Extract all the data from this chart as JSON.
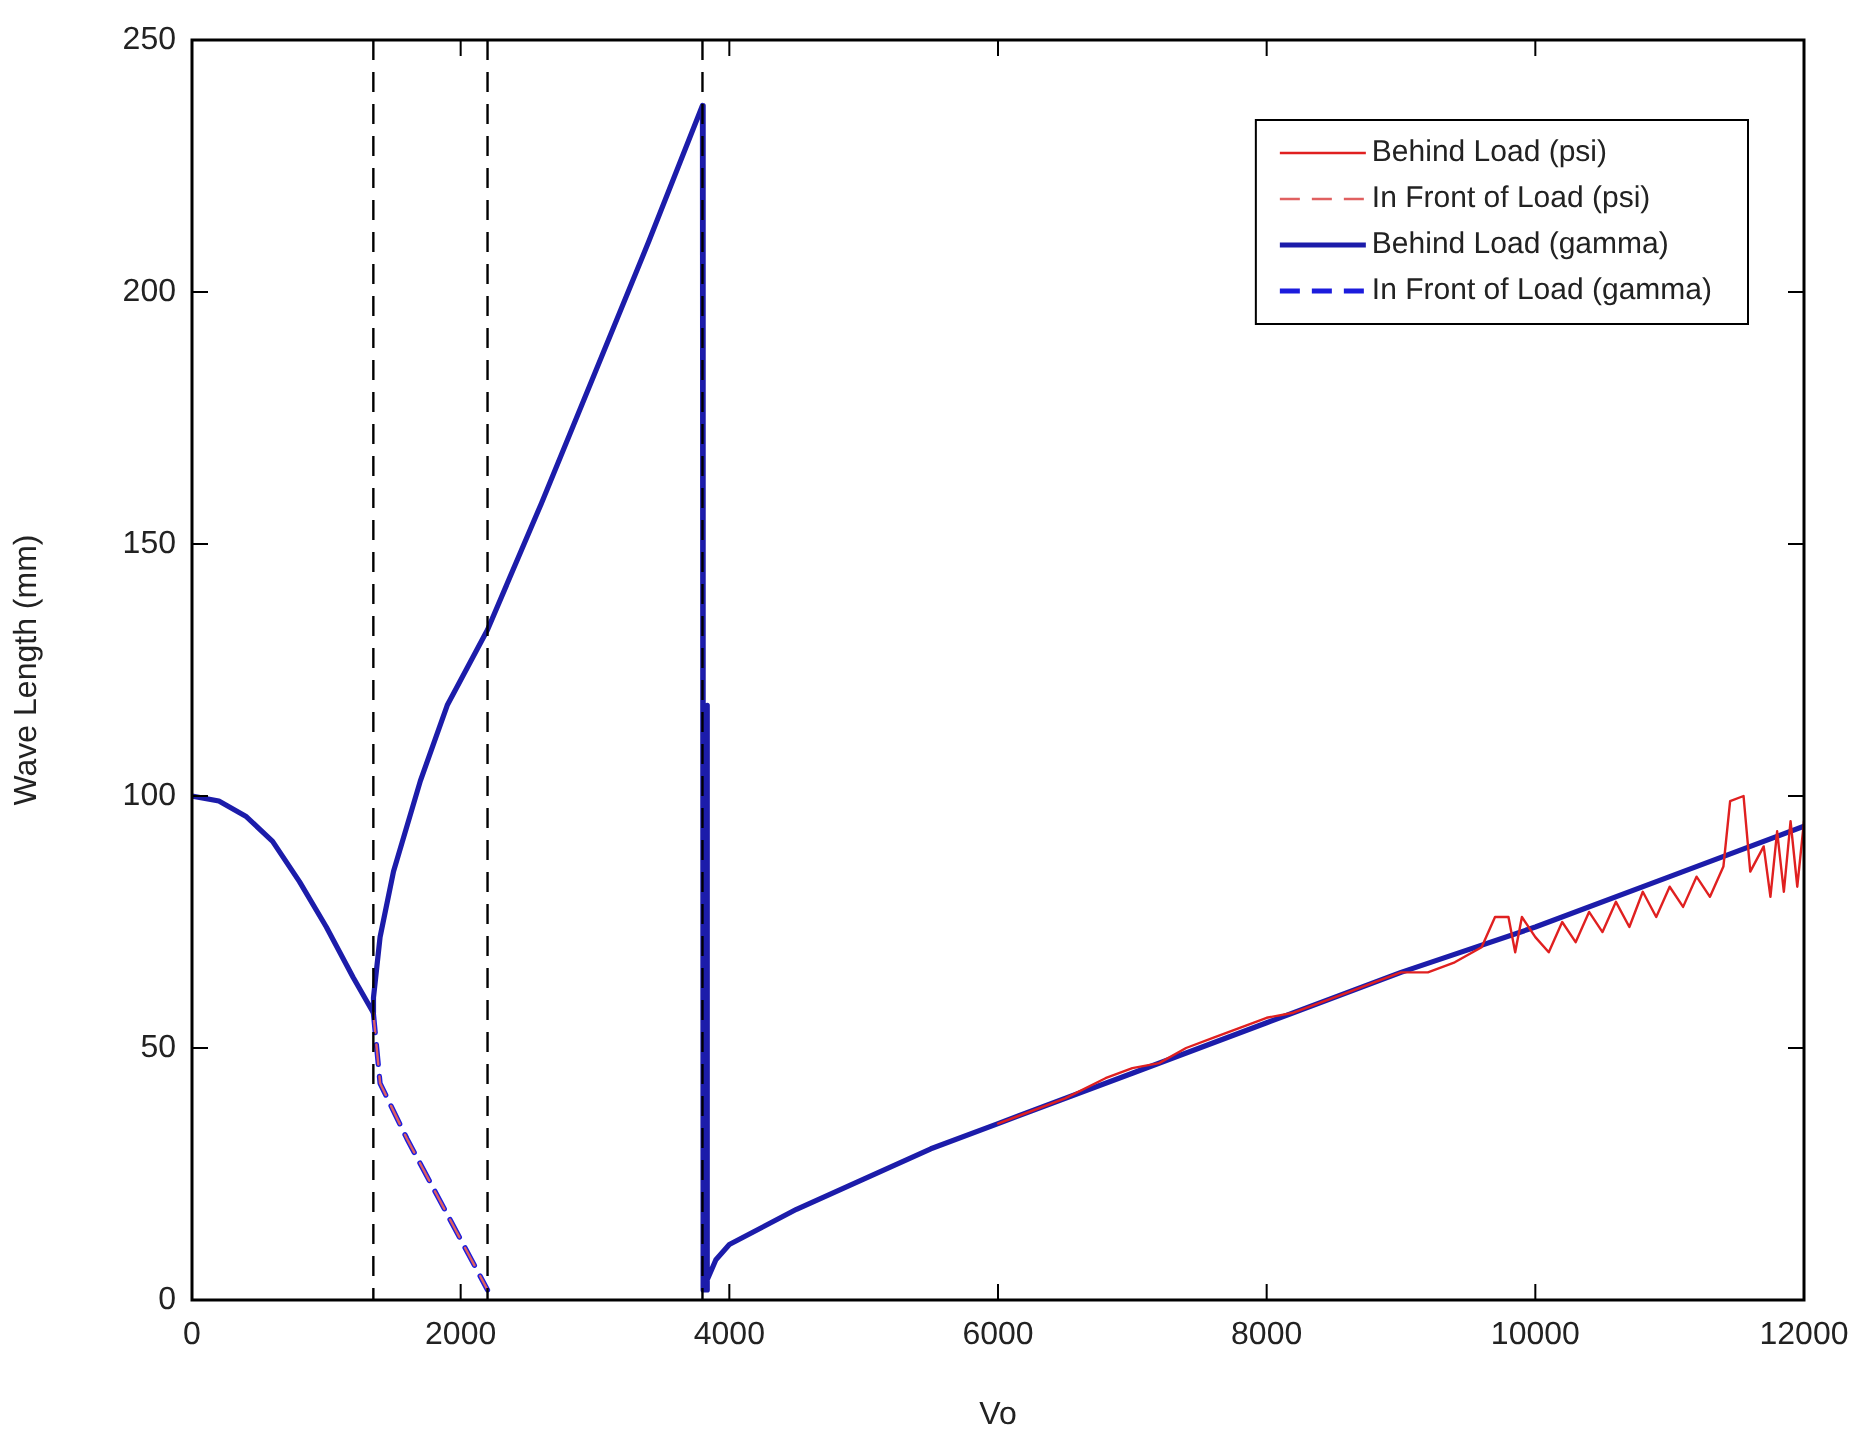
{
  "chart_data": {
    "type": "line",
    "xlabel": "Vo",
    "ylabel": "Wave Length (mm)",
    "xlim": [
      0,
      12000
    ],
    "xticks": [
      0,
      2000,
      4000,
      6000,
      8000,
      10000,
      12000
    ],
    "ylim": [
      0,
      250
    ],
    "yticks": [
      0,
      50,
      100,
      150,
      200,
      250
    ],
    "grid": false,
    "legend": "top right",
    "marker": "none",
    "ref_lines": [
      {
        "axis": "x",
        "value": 1350,
        "color": "#000000",
        "line_style": "dashed"
      },
      {
        "axis": "x",
        "value": 2200,
        "color": "#000000",
        "line_style": "dashed"
      },
      {
        "axis": "x",
        "value": 3800,
        "color": "#000000",
        "line_style": "dashed"
      }
    ],
    "series": [
      {
        "name": "Behind Load (psi)",
        "color": "#e02020",
        "line_style": "solid",
        "x": [
          6000,
          6500,
          6800,
          7000,
          7200,
          7400,
          7600,
          7800,
          8000,
          8200,
          8400,
          8600,
          8800,
          9000,
          9200,
          9400,
          9600,
          9700,
          9800,
          9850,
          9900,
          10000,
          10100,
          10200,
          10300,
          10400,
          10500,
          10600,
          10700,
          10800,
          10900,
          11000,
          11100,
          11200,
          11300,
          11400,
          11450,
          11550,
          11600,
          11700,
          11750,
          11800,
          11850,
          11900,
          11950,
          12000
        ],
        "values": [
          35,
          40,
          44,
          46,
          47,
          50,
          52,
          54,
          56,
          57,
          59,
          61,
          63,
          65,
          65,
          67,
          70,
          76,
          76,
          69,
          76,
          72,
          69,
          75,
          71,
          77,
          73,
          79,
          74,
          81,
          76,
          82,
          78,
          84,
          80,
          86,
          99,
          100,
          85,
          90,
          80,
          93,
          81,
          95,
          82,
          95
        ]
      },
      {
        "name": "In Front of Load (psi)",
        "color": "#e06060",
        "line_style": "dashed",
        "x": [
          1350,
          1400,
          1600,
          1800,
          2000,
          2200
        ],
        "values": [
          57,
          43,
          32,
          22,
          12,
          2
        ]
      },
      {
        "name": "Behind Load (gamma)",
        "color": "#1c1caa",
        "line_style": "solid",
        "x": [
          0,
          200,
          400,
          600,
          800,
          1000,
          1200,
          1350,
          1351,
          1400,
          1500,
          1700,
          1900,
          2200,
          2600,
          3000,
          3400,
          3800,
          3805,
          3830,
          3831,
          3840,
          3900,
          4000,
          4500,
          5000,
          5500,
          6000,
          7000,
          8000,
          9000,
          10000,
          11000,
          12000
        ],
        "values": [
          100,
          99,
          96,
          91,
          83,
          74,
          64,
          57,
          60,
          72,
          85,
          103,
          118,
          133,
          158,
          184,
          210,
          237,
          2,
          2,
          118,
          4,
          8,
          11,
          18,
          24,
          30,
          35,
          45,
          55,
          65,
          74,
          84,
          94
        ]
      },
      {
        "name": "In Front of Load (gamma)",
        "color": "#1c1cdd",
        "line_style": "dashed",
        "x": [
          1350,
          1400,
          1600,
          1800,
          2000,
          2200
        ],
        "values": [
          57,
          43,
          32,
          22,
          12,
          2
        ]
      }
    ]
  }
}
